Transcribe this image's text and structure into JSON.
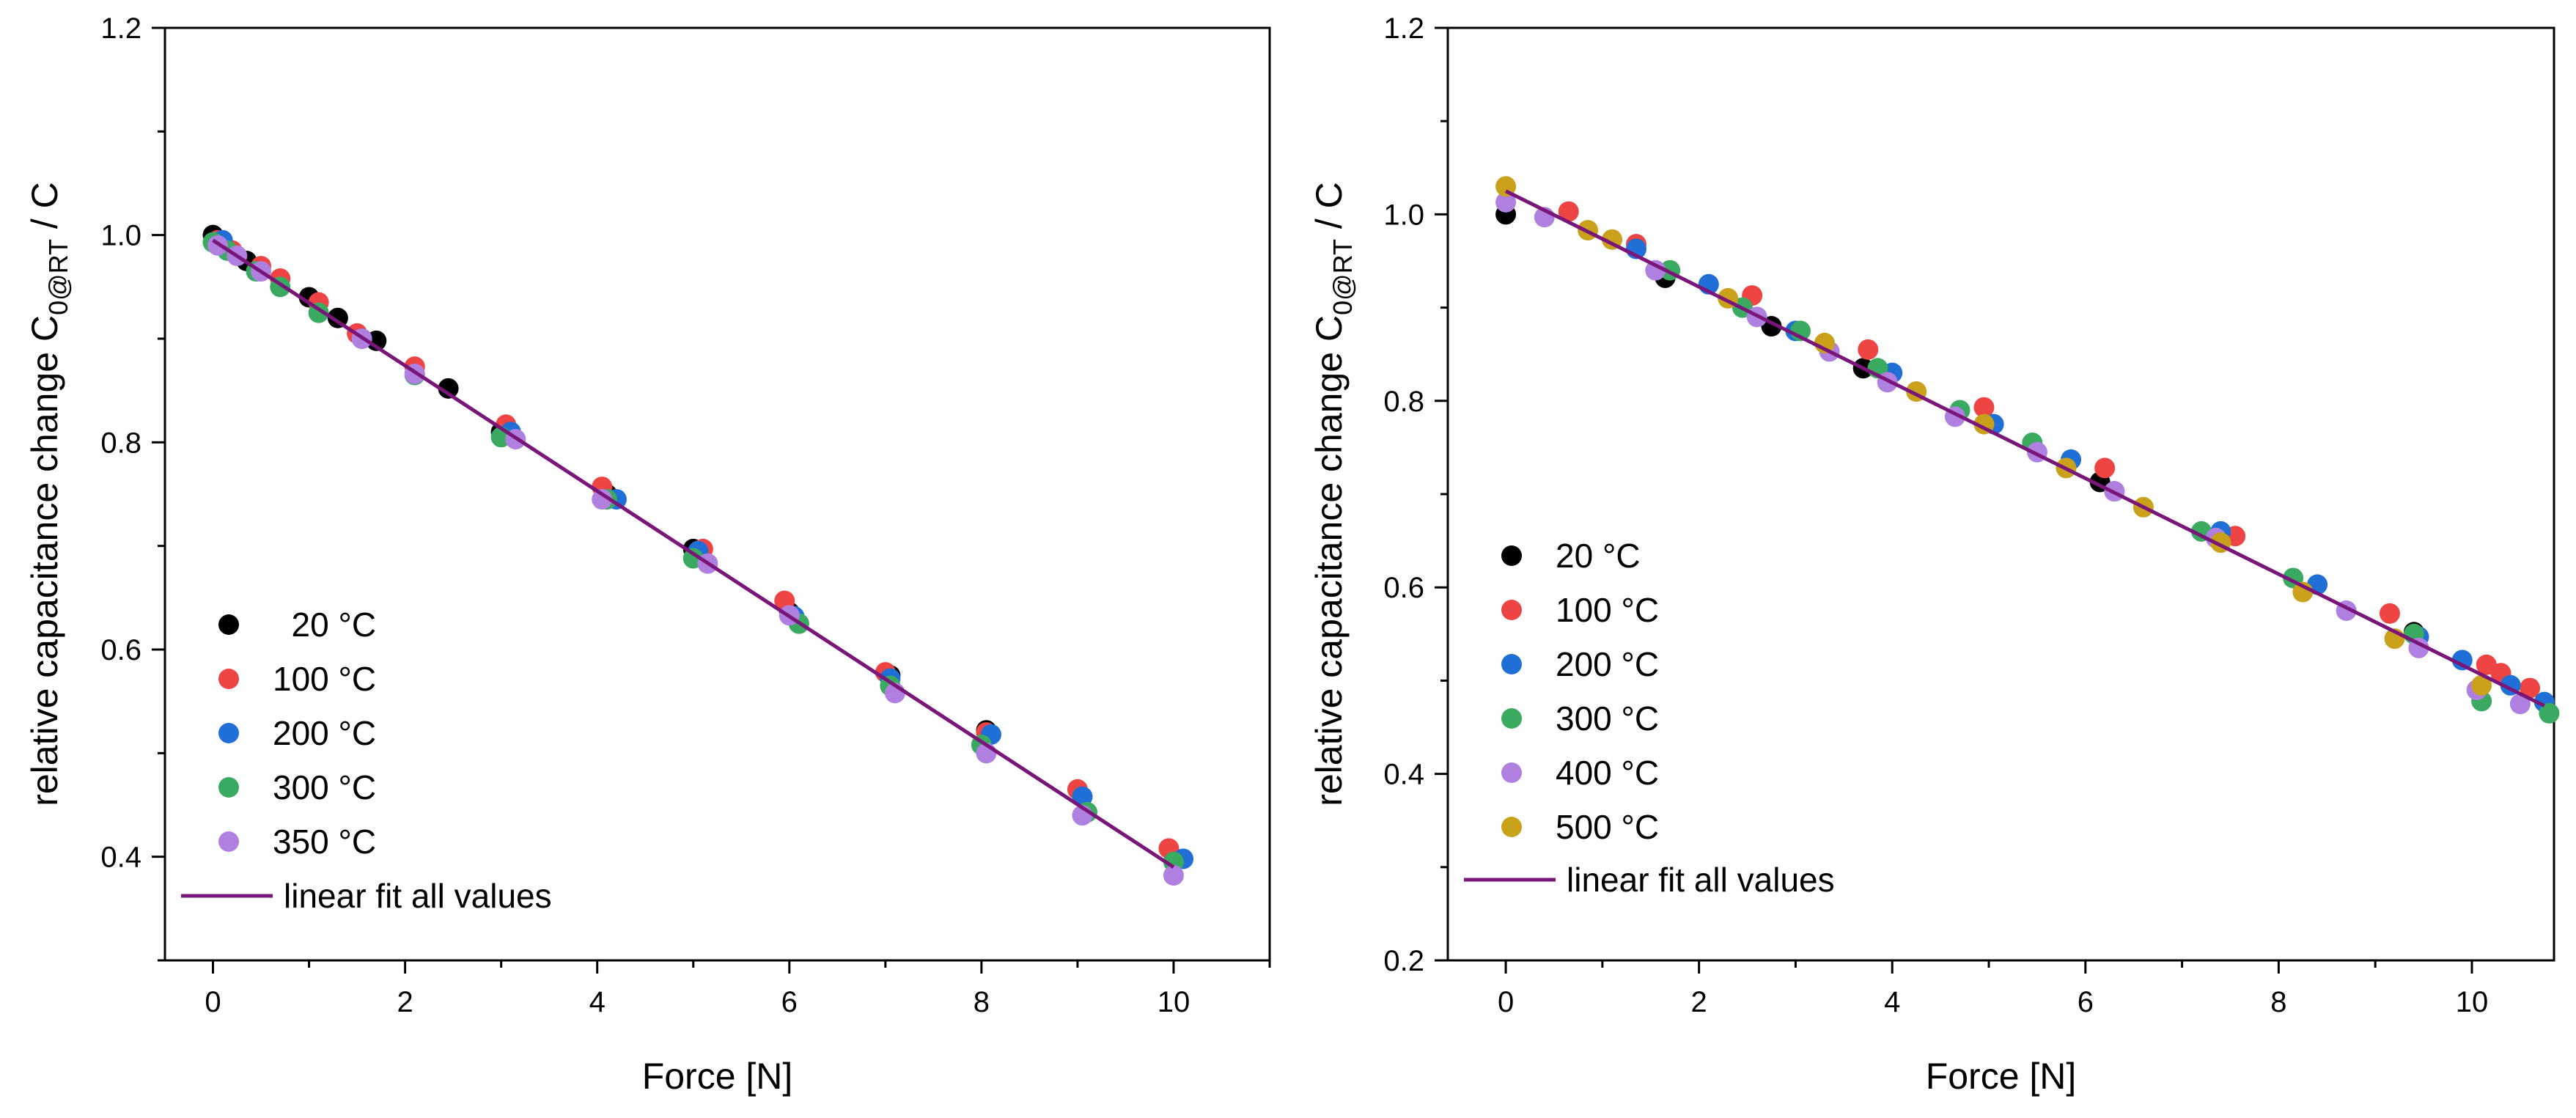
{
  "chart_data": [
    {
      "type": "scatter",
      "xlabel": "Force [N]",
      "ylabel": {
        "prefix": "relative capacitance change C",
        "sub": "0@RT",
        "suffix": " / C"
      },
      "xlim": [
        -0.5,
        11
      ],
      "ylim": [
        0.3,
        1.2
      ],
      "xticks": [
        "0",
        "2",
        "4",
        "6",
        "8",
        "10"
      ],
      "xtick_values": [
        0,
        2,
        4,
        6,
        8,
        10
      ],
      "yticks": [
        "0.4",
        "0.6",
        "0.8",
        "1.0",
        "1.2"
      ],
      "ytick_values": [
        0.4,
        0.6,
        0.8,
        1.0,
        1.2
      ],
      "legend_position": "bottom-left",
      "fit": {
        "name": "linear fit all values",
        "color": "#7a157a",
        "x": [
          0,
          10
        ],
        "y": [
          0.995,
          0.39
        ]
      },
      "series": [
        {
          "name": "  20 °C",
          "color": "#000000",
          "x": [
            0,
            0.35,
            1.0,
            1.3,
            1.7,
            2.45,
            3.0,
            4.1,
            5.0,
            6.0,
            7.05,
            8.05
          ],
          "y": [
            1.0,
            0.975,
            0.94,
            0.92,
            0.898,
            0.852,
            0.81,
            0.75,
            0.697,
            0.636,
            0.575,
            0.522
          ]
        },
        {
          "name": "100 °C",
          "color": "#ee4444",
          "x": [
            0.05,
            0.2,
            0.5,
            0.7,
            1.1,
            1.5,
            2.1,
            3.05,
            4.05,
            5.1,
            5.95,
            7.0,
            8.05,
            9.0,
            9.95
          ],
          "y": [
            0.995,
            0.985,
            0.97,
            0.958,
            0.935,
            0.905,
            0.873,
            0.817,
            0.757,
            0.697,
            0.647,
            0.578,
            0.52,
            0.465,
            0.408
          ]
        },
        {
          "name": "200 °C",
          "color": "#1f6fd6",
          "x": [
            0.1,
            1.55,
            3.1,
            4.2,
            5.05,
            6.05,
            7.05,
            8.1,
            9.05,
            10.1
          ],
          "y": [
            0.995,
            0.9,
            0.81,
            0.745,
            0.695,
            0.632,
            0.572,
            0.518,
            0.458,
            0.398
          ]
        },
        {
          "name": "300 °C",
          "color": "#3aaa60",
          "x": [
            0,
            0.15,
            0.45,
            0.7,
            1.1,
            2.1,
            3.0,
            4.1,
            5.0,
            6.1,
            7.05,
            8.0,
            9.1,
            10.0
          ],
          "y": [
            0.993,
            0.985,
            0.965,
            0.95,
            0.925,
            0.865,
            0.805,
            0.745,
            0.688,
            0.625,
            0.565,
            0.508,
            0.443,
            0.395
          ]
        },
        {
          "name": "350 °C",
          "color": "#b080e0",
          "x": [
            0.05,
            0.25,
            0.5,
            1.55,
            2.1,
            3.15,
            4.05,
            5.15,
            6.0,
            7.1,
            8.05,
            9.05,
            10.0
          ],
          "y": [
            0.99,
            0.98,
            0.965,
            0.9,
            0.866,
            0.803,
            0.745,
            0.683,
            0.633,
            0.558,
            0.5,
            0.44,
            0.382
          ]
        }
      ]
    },
    {
      "type": "scatter",
      "xlabel": "Force [N]",
      "ylabel": {
        "prefix": "relative capacitance change C",
        "sub": "0@RT",
        "suffix": " / C"
      },
      "xlim": [
        -0.6,
        10.85
      ],
      "ylim": [
        0.2,
        1.2
      ],
      "xticks": [
        "0",
        "2",
        "4",
        "6",
        "8",
        "10"
      ],
      "xtick_values": [
        0,
        2,
        4,
        6,
        8,
        10
      ],
      "yticks": [
        "0.2",
        "0.4",
        "0.6",
        "0.8",
        "1.0",
        "1.2"
      ],
      "ytick_values": [
        0.2,
        0.4,
        0.6,
        0.8,
        1.0,
        1.2
      ],
      "legend_position": "middle-left",
      "fit": {
        "name": "linear fit all values",
        "color": "#7a157a",
        "x": [
          0,
          10.75
        ],
        "y": [
          1.025,
          0.473
        ]
      },
      "series": [
        {
          "name": "20 °C",
          "color": "#000000",
          "x": [
            0,
            1.65,
            2.75,
            3.7,
            6.15,
            9.4
          ],
          "y": [
            1.0,
            0.932,
            0.88,
            0.835,
            0.713,
            0.552
          ]
        },
        {
          "name": "100 °C",
          "color": "#ee4444",
          "x": [
            0.65,
            1.35,
            2.55,
            3.75,
            4.95,
            6.2,
            7.55,
            9.15,
            10.15,
            10.3,
            10.6
          ],
          "y": [
            1.003,
            0.968,
            0.913,
            0.855,
            0.793,
            0.728,
            0.655,
            0.572,
            0.517,
            0.508,
            0.492
          ]
        },
        {
          "name": "200 °C",
          "color": "#1f6fd6",
          "x": [
            1.35,
            2.1,
            3.0,
            4.0,
            5.05,
            5.85,
            7.4,
            8.4,
            9.45,
            9.9,
            10.4,
            10.75
          ],
          "y": [
            0.963,
            0.925,
            0.875,
            0.83,
            0.775,
            0.737,
            0.66,
            0.603,
            0.547,
            0.522,
            0.495,
            0.477
          ]
        },
        {
          "name": "300 °C",
          "color": "#3aaa60",
          "x": [
            1.7,
            2.45,
            3.05,
            3.85,
            4.7,
            5.45,
            6.3,
            7.2,
            8.15,
            9.4,
            10.1,
            10.8
          ],
          "y": [
            0.94,
            0.9,
            0.875,
            0.835,
            0.79,
            0.755,
            0.703,
            0.66,
            0.61,
            0.55,
            0.478,
            0.465
          ]
        },
        {
          "name": "400 °C",
          "color": "#b080e0",
          "x": [
            0,
            0.4,
            1.55,
            2.6,
            3.35,
            3.95,
            4.65,
            5.5,
            6.3,
            7.35,
            8.7,
            9.45,
            10.05,
            10.5
          ],
          "y": [
            1.013,
            0.997,
            0.94,
            0.89,
            0.853,
            0.82,
            0.783,
            0.745,
            0.703,
            0.653,
            0.575,
            0.535,
            0.49,
            0.475
          ]
        },
        {
          "name": "500 °C",
          "color": "#c9a11a",
          "x": [
            0,
            0.85,
            1.1,
            2.3,
            3.3,
            4.25,
            4.95,
            5.8,
            6.6,
            7.4,
            8.25,
            9.2,
            10.1
          ],
          "y": [
            1.03,
            0.983,
            0.973,
            0.91,
            0.862,
            0.81,
            0.775,
            0.728,
            0.686,
            0.648,
            0.595,
            0.545,
            0.495
          ]
        }
      ]
    }
  ]
}
